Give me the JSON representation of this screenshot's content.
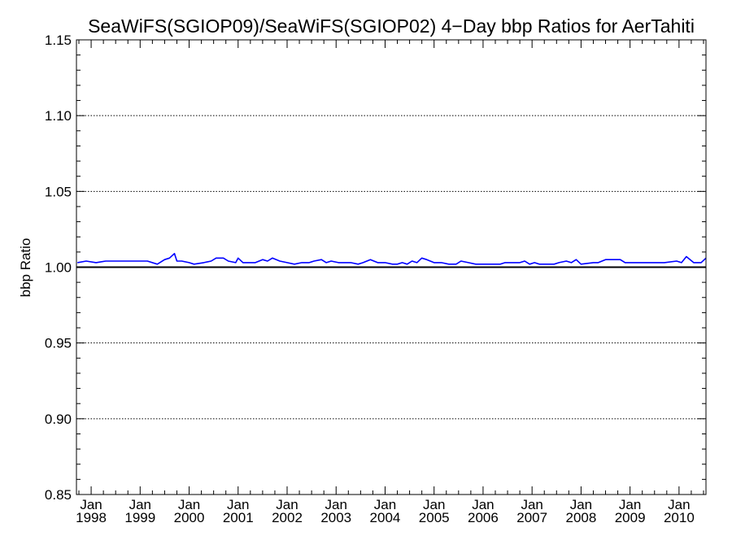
{
  "chart_data": {
    "type": "line",
    "title": "SeaWiFS(SGIOP09)/SeaWiFS(SGIOP02) 4−Day bbp Ratios for AerTahiti",
    "xlabel": "",
    "ylabel": "bbp Ratio",
    "ylim": [
      0.85,
      1.15
    ],
    "xlim": [
      1997.7,
      2010.55
    ],
    "yticks": [
      0.85,
      0.9,
      0.95,
      1.0,
      1.05,
      1.1,
      1.15
    ],
    "ytick_labels": [
      "0.85",
      "0.90",
      "0.95",
      "1.00",
      "1.05",
      "1.10",
      "1.15"
    ],
    "xticks": [
      {
        "value": 1998,
        "month": "Jan",
        "year": "1998"
      },
      {
        "value": 1999,
        "month": "Jan",
        "year": "1999"
      },
      {
        "value": 2000,
        "month": "Jan",
        "year": "2000"
      },
      {
        "value": 2001,
        "month": "Jan",
        "year": "2001"
      },
      {
        "value": 2002,
        "month": "Jan",
        "year": "2002"
      },
      {
        "value": 2003,
        "month": "Jan",
        "year": "2003"
      },
      {
        "value": 2004,
        "month": "Jan",
        "year": "2004"
      },
      {
        "value": 2005,
        "month": "Jan",
        "year": "2005"
      },
      {
        "value": 2006,
        "month": "Jan",
        "year": "2006"
      },
      {
        "value": 2007,
        "month": "Jan",
        "year": "2007"
      },
      {
        "value": 2008,
        "month": "Jan",
        "year": "2008"
      },
      {
        "value": 2009,
        "month": "Jan",
        "year": "2009"
      },
      {
        "value": 2010,
        "month": "Jan",
        "year": "2010"
      }
    ],
    "grid": true,
    "grid_lines": [
      0.9,
      0.95,
      1.05,
      1.1
    ],
    "reference_line": 1.0,
    "series": [
      {
        "color": "#0000ff",
        "x": [
          1997.72,
          1997.9,
          1998.1,
          1998.3,
          1998.45,
          1998.6,
          1998.75,
          1998.95,
          1999.15,
          1999.35,
          1999.5,
          1999.6,
          1999.7,
          1999.75,
          1999.85,
          2000.0,
          2000.1,
          2000.3,
          2000.45,
          2000.55,
          2000.7,
          2000.8,
          2000.95,
          2001.0,
          2001.1,
          2001.25,
          2001.35,
          2001.5,
          2001.6,
          2001.7,
          2001.85,
          2002.0,
          2002.15,
          2002.3,
          2002.45,
          2002.55,
          2002.7,
          2002.8,
          2002.9,
          2003.05,
          2003.15,
          2003.3,
          2003.45,
          2003.55,
          2003.7,
          2003.85,
          2004.0,
          2004.15,
          2004.25,
          2004.35,
          2004.45,
          2004.55,
          2004.65,
          2004.75,
          2004.85,
          2005.0,
          2005.15,
          2005.3,
          2005.45,
          2005.55,
          2005.7,
          2005.85,
          2006.0,
          2006.15,
          2006.25,
          2006.35,
          2006.45,
          2006.55,
          2006.75,
          2006.85,
          2006.95,
          2007.05,
          2007.15,
          2007.3,
          2007.45,
          2007.55,
          2007.7,
          2007.8,
          2007.9,
          2008.0,
          2008.25,
          2008.35,
          2008.5,
          2008.7,
          2008.8,
          2008.9,
          2009.0,
          2009.15,
          2009.3,
          2009.5,
          2009.7,
          2009.95,
          2010.05,
          2010.15,
          2010.3,
          2010.45,
          2010.55
        ],
        "y": [
          1.003,
          1.004,
          1.003,
          1.004,
          1.004,
          1.004,
          1.004,
          1.004,
          1.004,
          1.002,
          1.005,
          1.006,
          1.009,
          1.004,
          1.004,
          1.003,
          1.002,
          1.003,
          1.004,
          1.006,
          1.006,
          1.004,
          1.003,
          1.006,
          1.003,
          1.003,
          1.003,
          1.005,
          1.004,
          1.006,
          1.004,
          1.003,
          1.002,
          1.003,
          1.003,
          1.004,
          1.005,
          1.003,
          1.004,
          1.003,
          1.003,
          1.003,
          1.002,
          1.003,
          1.005,
          1.003,
          1.003,
          1.002,
          1.002,
          1.003,
          1.002,
          1.004,
          1.003,
          1.006,
          1.005,
          1.003,
          1.003,
          1.002,
          1.002,
          1.004,
          1.003,
          1.002,
          1.002,
          1.002,
          1.002,
          1.002,
          1.003,
          1.003,
          1.003,
          1.004,
          1.002,
          1.003,
          1.002,
          1.002,
          1.002,
          1.003,
          1.004,
          1.003,
          1.005,
          1.002,
          1.003,
          1.003,
          1.005,
          1.005,
          1.005,
          1.003,
          1.003,
          1.003,
          1.003,
          1.003,
          1.003,
          1.004,
          1.003,
          1.007,
          1.003,
          1.003,
          1.006
        ]
      }
    ]
  }
}
